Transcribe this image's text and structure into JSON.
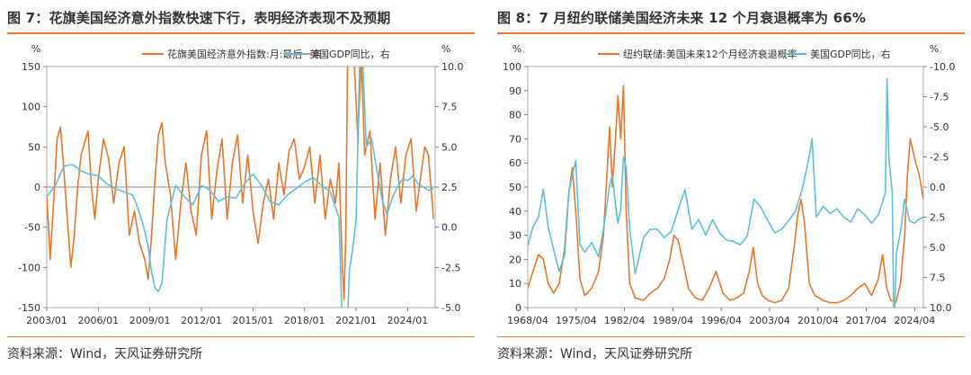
{
  "charts": [
    {
      "figure_title": "图 7：花旗美国经济意外指数快速下行，表明经济表现不及预期",
      "source": "资料来源：Wind，天风证券研究所",
      "chart_data": {
        "type": "line",
        "title": "",
        "left_unit": "%",
        "right_unit": "%",
        "left_ylim": [
          -150,
          150
        ],
        "right_ylim": [
          -5,
          10
        ],
        "right_inverted": false,
        "left_ticks": [
          150,
          100,
          50,
          0,
          -50,
          -100,
          -150
        ],
        "right_ticks": [
          10.0,
          7.5,
          5.0,
          2.5,
          0.0,
          -2.5,
          -5.0
        ],
        "left_tick_labels": [
          "150",
          "100",
          "50",
          "0",
          "-50",
          "-100",
          "-150"
        ],
        "right_tick_labels": [
          "10.0",
          "7.5",
          "5.0",
          "2.5",
          "0.0",
          "-2.5",
          "-5.0"
        ],
        "x_range": [
          2003.0,
          2025.6
        ],
        "x_ticks": [
          2003.0,
          2006.0,
          2009.0,
          2012.0,
          2015.0,
          2018.0,
          2021.0,
          2024.0
        ],
        "x_tick_labels": [
          "2003/01",
          "2006/01",
          "2009/01",
          "2012/01",
          "2015/01",
          "2018/01",
          "2021/01",
          "2024/01"
        ],
        "legend_placement": "top",
        "series": [
          {
            "name": "花旗美国经济意外指数:月:最后一条",
            "axis": "left",
            "color": "#e8762c",
            "x": [
              2003.0,
              2003.2,
              2003.4,
              2003.6,
              2003.8,
              2004.0,
              2004.2,
              2004.4,
              2004.6,
              2004.8,
              2005.0,
              2005.2,
              2005.4,
              2005.6,
              2005.8,
              2006.0,
              2006.3,
              2006.6,
              2006.9,
              2007.2,
              2007.5,
              2007.8,
              2008.1,
              2008.4,
              2008.7,
              2008.9,
              2009.1,
              2009.3,
              2009.5,
              2009.7,
              2009.9,
              2010.2,
              2010.5,
              2010.8,
              2011.1,
              2011.4,
              2011.7,
              2012.0,
              2012.3,
              2012.6,
              2012.9,
              2013.2,
              2013.5,
              2013.8,
              2014.1,
              2014.4,
              2014.7,
              2015.0,
              2015.3,
              2015.6,
              2015.9,
              2016.2,
              2016.5,
              2016.8,
              2017.1,
              2017.4,
              2017.7,
              2018.0,
              2018.3,
              2018.6,
              2018.9,
              2019.2,
              2019.5,
              2019.8,
              2020.0,
              2020.2,
              2020.3,
              2020.4,
              2020.5,
              2020.7,
              2020.9,
              2021.1,
              2021.3,
              2021.5,
              2021.8,
              2022.1,
              2022.4,
              2022.7,
              2023.0,
              2023.3,
              2023.6,
              2023.9,
              2024.2,
              2024.5,
              2024.8,
              2025.0,
              2025.2,
              2025.4,
              2025.5
            ],
            "values": [
              -10,
              -90,
              -20,
              60,
              75,
              20,
              -40,
              -100,
              -60,
              0,
              40,
              55,
              70,
              0,
              -40,
              10,
              60,
              35,
              -20,
              30,
              50,
              -60,
              -30,
              -70,
              -90,
              -115,
              -60,
              10,
              65,
              80,
              30,
              -10,
              -90,
              -20,
              30,
              -30,
              -60,
              40,
              70,
              -40,
              20,
              60,
              -40,
              30,
              65,
              -20,
              40,
              -30,
              -70,
              -20,
              10,
              -40,
              30,
              -10,
              45,
              60,
              10,
              25,
              50,
              -20,
              40,
              -40,
              10,
              -20,
              30,
              -100,
              -140,
              -60,
              150,
              200,
              150,
              60,
              160,
              40,
              70,
              -40,
              30,
              -60,
              10,
              50,
              -20,
              40,
              60,
              -30,
              20,
              50,
              40,
              -10,
              -40
            ]
          },
          {
            "name": "美国GDP同比，右",
            "axis": "right",
            "color": "#5bc0de",
            "x": [
              2003.0,
              2003.5,
              2004.0,
              2004.5,
              2005.0,
              2005.5,
              2006.0,
              2006.5,
              2007.0,
              2007.5,
              2008.0,
              2008.3,
              2008.6,
              2008.9,
              2009.1,
              2009.3,
              2009.5,
              2009.7,
              2010.0,
              2010.5,
              2011.0,
              2011.5,
              2012.0,
              2012.5,
              2013.0,
              2013.5,
              2014.0,
              2014.5,
              2015.0,
              2015.5,
              2016.0,
              2016.5,
              2017.0,
              2017.5,
              2018.0,
              2018.5,
              2019.0,
              2019.5,
              2020.0,
              2020.25,
              2020.4,
              2020.6,
              2020.8,
              2021.0,
              2021.25,
              2021.4,
              2021.6,
              2021.9,
              2022.2,
              2022.5,
              2022.8,
              2023.1,
              2023.4,
              2023.7,
              2024.0,
              2024.3,
              2024.6,
              2024.9,
              2025.2,
              2025.5
            ],
            "values": [
              1.9,
              2.6,
              3.8,
              3.9,
              3.5,
              3.3,
              3.2,
              2.7,
              2.4,
              2.2,
              2.0,
              1.2,
              0.2,
              -1.2,
              -2.8,
              -3.8,
              -4.0,
              -3.5,
              0.5,
              2.6,
              1.9,
              1.4,
              2.6,
              2.3,
              1.6,
              1.9,
              1.8,
              2.7,
              3.3,
              2.6,
              1.6,
              1.4,
              2.0,
              2.4,
              2.8,
              3.1,
              2.6,
              2.2,
              0.6,
              -8.0,
              -9.5,
              -2.8,
              -1.4,
              0.5,
              12.2,
              10.0,
              5.0,
              5.5,
              3.6,
              1.8,
              0.8,
              1.8,
              2.5,
              3.0,
              2.9,
              3.2,
              2.7,
              2.5,
              2.3,
              2.4
            ]
          }
        ]
      }
    },
    {
      "figure_title": "图 8：7 月纽约联储美国经济未来 12 个月衰退概率为 66%",
      "source": "资料来源：Wind，天风证券研究所",
      "chart_data": {
        "type": "line",
        "title": "",
        "left_unit": "%",
        "right_unit": "%",
        "left_ylim": [
          0,
          100
        ],
        "right_ylim": [
          -10,
          10
        ],
        "right_inverted": true,
        "left_ticks": [
          100,
          90,
          80,
          70,
          60,
          50,
          40,
          30,
          20,
          10,
          0
        ],
        "right_ticks": [
          -10.0,
          -7.5,
          -5.0,
          -2.5,
          0.0,
          2.5,
          5.0,
          7.5,
          10.0
        ],
        "left_tick_labels": [
          "100",
          "90",
          "80",
          "70",
          "60",
          "50",
          "40",
          "30",
          "20",
          "10",
          "0"
        ],
        "right_tick_labels": [
          "-10.0",
          "-7.5",
          "-5.0",
          "-2.5",
          "0.0",
          "2.5",
          "5.0",
          "7.5",
          "10.0"
        ],
        "x_range": [
          1968.25,
          2025.5
        ],
        "x_ticks": [
          1968.25,
          1975.25,
          1982.25,
          1989.25,
          1996.25,
          2003.25,
          2010.25,
          2017.25,
          2024.25
        ],
        "x_tick_labels": [
          "1968/04",
          "1975/04",
          "1982/04",
          "1989/04",
          "1996/04",
          "2003/04",
          "2010/04",
          "2017/04",
          "2024/04"
        ],
        "legend_placement": "top",
        "series": [
          {
            "name": "纽约联储:美国未来12个月经济衰退概率",
            "axis": "left",
            "color": "#e8762c",
            "x": [
              1968.25,
              1969.0,
              1969.8,
              1970.5,
              1971.2,
              1972.0,
              1972.8,
              1973.6,
              1974.2,
              1974.7,
              1975.2,
              1975.8,
              1976.5,
              1977.5,
              1978.5,
              1979.2,
              1979.7,
              1980.1,
              1980.5,
              1980.9,
              1981.3,
              1981.7,
              1982.1,
              1982.5,
              1983.0,
              1983.8,
              1985.0,
              1986.0,
              1987.0,
              1988.0,
              1988.8,
              1989.4,
              1990.0,
              1990.8,
              1991.5,
              1992.5,
              1993.5,
              1994.5,
              1995.5,
              1996.5,
              1997.5,
              1998.5,
              1999.5,
              2000.3,
              2000.9,
              2001.5,
              2002.2,
              2003.0,
              2004.0,
              2005.0,
              2006.0,
              2006.8,
              2007.3,
              2007.8,
              2008.3,
              2009.0,
              2009.8,
              2011.0,
              2012.0,
              2013.0,
              2014.0,
              2015.0,
              2016.0,
              2017.0,
              2018.0,
              2019.0,
              2019.6,
              2020.2,
              2020.8,
              2021.5,
              2022.2,
              2022.8,
              2023.2,
              2023.6,
              2024.0,
              2024.4,
              2024.9,
              2025.2,
              2025.5
            ],
            "values": [
              8,
              15,
              22,
              20,
              10,
              6,
              10,
              25,
              48,
              58,
              40,
              12,
              5,
              8,
              15,
              30,
              55,
              75,
              50,
              68,
              88,
              70,
              92,
              40,
              10,
              4,
              3,
              6,
              8,
              12,
              20,
              30,
              28,
              18,
              8,
              4,
              3,
              8,
              15,
              6,
              3,
              4,
              6,
              15,
              25,
              10,
              5,
              3,
              2,
              3,
              8,
              25,
              38,
              45,
              35,
              10,
              5,
              3,
              2,
              2,
              3,
              5,
              8,
              10,
              5,
              12,
              22,
              8,
              3,
              2,
              10,
              30,
              55,
              70,
              65,
              60,
              55,
              50,
              45
            ]
          },
          {
            "name": "美国GDP同比，右",
            "axis": "right",
            "color": "#5bc0de",
            "x": [
              1968.25,
              1969.0,
              1969.8,
              1970.5,
              1971.2,
              1972.0,
              1972.8,
              1973.6,
              1974.2,
              1974.7,
              1975.2,
              1975.8,
              1976.5,
              1977.5,
              1978.5,
              1979.2,
              1979.7,
              1980.1,
              1980.5,
              1980.9,
              1981.3,
              1981.7,
              1982.1,
              1982.5,
              1983.0,
              1983.8,
              1985.0,
              1986.0,
              1987.0,
              1988.0,
              1989.0,
              1990.0,
              1991.0,
              1992.0,
              1993.0,
              1994.0,
              1995.0,
              1996.0,
              1997.0,
              1998.0,
              1999.0,
              2000.0,
              2001.0,
              2002.0,
              2003.0,
              2004.0,
              2005.0,
              2006.0,
              2007.0,
              2008.0,
              2008.8,
              2009.4,
              2010.0,
              2011.0,
              2012.0,
              2013.0,
              2014.0,
              2015.0,
              2016.0,
              2017.0,
              2018.0,
              2019.0,
              2020.0,
              2020.25,
              2020.5,
              2021.0,
              2021.25,
              2021.6,
              2022.2,
              2022.8,
              2023.5,
              2024.2,
              2024.8,
              2025.5
            ],
            "values": [
              4.9,
              3.3,
              2.5,
              0.2,
              3.3,
              5.2,
              7.0,
              5.6,
              0.5,
              -1.0,
              -2.2,
              4.8,
              5.4,
              4.6,
              5.8,
              3.5,
              1.5,
              -0.2,
              -1.0,
              1.2,
              3.0,
              1.8,
              -2.5,
              -1.6,
              3.5,
              7.2,
              4.2,
              3.5,
              3.5,
              4.2,
              3.7,
              1.9,
              0.2,
              3.5,
              2.7,
              4.0,
              2.7,
              3.8,
              4.4,
              4.5,
              4.8,
              4.1,
              1.0,
              1.7,
              2.8,
              3.8,
              3.5,
              2.8,
              2.0,
              0.1,
              -2.0,
              -4.0,
              2.5,
              1.6,
              2.2,
              1.8,
              2.5,
              2.9,
              1.8,
              2.3,
              3.0,
              2.3,
              0.5,
              -9.0,
              -2.5,
              0.5,
              12.0,
              5.5,
              3.7,
              1.0,
              2.8,
              3.0,
              2.7,
              2.5
            ]
          }
        ]
      }
    }
  ]
}
